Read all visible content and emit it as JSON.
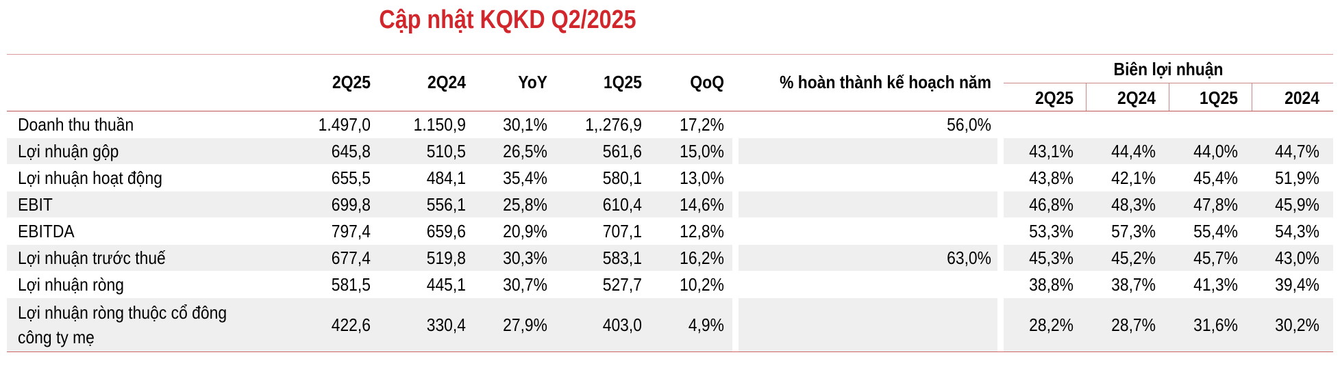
{
  "title": "Cập nhật KQKD Q2/2025",
  "columns": [
    "2Q25",
    "2Q24",
    "YoY",
    "1Q25",
    "QoQ",
    "% hoàn thành kế hoạch năm"
  ],
  "margin_group": "Biên lợi nhuận",
  "margin_columns": [
    "2Q25",
    "2Q24",
    "1Q25",
    "2024"
  ],
  "rows": [
    {
      "label": [
        "Doanh thu thuần"
      ],
      "cells": [
        "1.497,0",
        "1.150,9",
        "30,1%",
        "1,.276,9",
        "17,2%",
        "56,0%"
      ],
      "margins": [
        null,
        null,
        null,
        null
      ]
    },
    {
      "label": [
        "Lợi nhuận gộp"
      ],
      "cells": [
        "645,8",
        "510,5",
        "26,5%",
        "561,6",
        "15,0%",
        null
      ],
      "margins": [
        "43,1%",
        "44,4%",
        "44,0%",
        "44,7%"
      ]
    },
    {
      "label": [
        "Lợi nhuận hoạt động"
      ],
      "cells": [
        "655,5",
        "484,1",
        "35,4%",
        "580,1",
        "13,0%",
        null
      ],
      "margins": [
        "43,8%",
        "42,1%",
        "45,4%",
        "51,9%"
      ]
    },
    {
      "label": [
        "EBIT"
      ],
      "cells": [
        "699,8",
        "556,1",
        "25,8%",
        "610,4",
        "14,6%",
        null
      ],
      "margins": [
        "46,8%",
        "48,3%",
        "47,8%",
        "45,9%"
      ]
    },
    {
      "label": [
        "EBITDA"
      ],
      "cells": [
        "797,4",
        "659,6",
        "20,9%",
        "707,1",
        "12,8%",
        null
      ],
      "margins": [
        "53,3%",
        "57,3%",
        "55,4%",
        "54,3%"
      ]
    },
    {
      "label": [
        "Lợi nhuận trước thuế"
      ],
      "cells": [
        "677,4",
        "519,8",
        "30,3%",
        "583,1",
        "16,2%",
        "63,0%"
      ],
      "margins": [
        "45,3%",
        "45,2%",
        "45,7%",
        "43,0%"
      ]
    },
    {
      "label": [
        "Lợi nhuận ròng"
      ],
      "cells": [
        "581,5",
        "445,1",
        "30,7%",
        "527,7",
        "10,2%",
        null
      ],
      "margins": [
        "38,8%",
        "38,7%",
        "41,3%",
        "39,4%"
      ]
    },
    {
      "label": [
        "Lợi nhuận ròng thuộc cổ đông",
        "công ty mẹ"
      ],
      "cells": [
        "422,6",
        "330,4",
        "27,9%",
        "403,0",
        "4,9%",
        null
      ],
      "margins": [
        "28,2%",
        "28,7%",
        "31,6%",
        "30,2%"
      ]
    }
  ]
}
